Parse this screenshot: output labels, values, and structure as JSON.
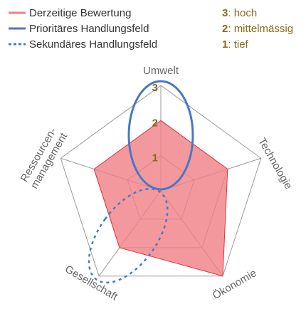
{
  "chart_data": {
    "type": "radar",
    "categories": [
      "Umwelt",
      "Technologie",
      "Ökonomie",
      "Gesellschaft",
      "Ressourcen-\nmanagement"
    ],
    "series": [
      {
        "name": "Derzeitige Bewertung",
        "color": "#f07f86",
        "values": [
          2,
          2,
          3,
          2,
          2
        ]
      },
      {
        "name": "Prioritäres Handlungsfeld",
        "color": "#4a78c0",
        "category": "Umwelt",
        "style": "solid"
      },
      {
        "name": "Sekundäres Handlungsfeld",
        "color": "#4a78c0",
        "category": "Gesellschaft",
        "style": "dotted"
      }
    ],
    "ylim": [
      0,
      3
    ],
    "yticks": [
      1,
      2,
      3
    ],
    "scale_legend": [
      {
        "value": 3,
        "label": "hoch"
      },
      {
        "value": 2,
        "label": "mittelmässig"
      },
      {
        "value": 1,
        "label": "tief"
      }
    ]
  }
}
